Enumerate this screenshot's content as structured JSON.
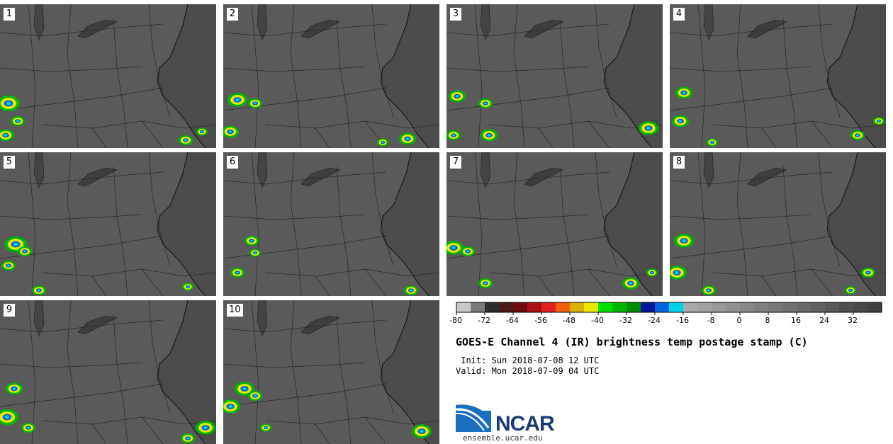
{
  "stamps": [
    {
      "label": "1"
    },
    {
      "label": "2"
    },
    {
      "label": "3"
    },
    {
      "label": "4"
    },
    {
      "label": "5"
    },
    {
      "label": "6"
    },
    {
      "label": "7"
    },
    {
      "label": "8"
    },
    {
      "label": "9"
    },
    {
      "label": "10"
    }
  ],
  "colorbar": {
    "min": -80,
    "max": 40,
    "step": 4,
    "tick_labels": [
      "-80",
      "-72",
      "-64",
      "-56",
      "-48",
      "-40",
      "-32",
      "-24",
      "-16",
      "-8",
      "0",
      "8",
      "16",
      "24",
      "32"
    ],
    "colors": [
      "#c8c8c8",
      "#7a7a7a",
      "#2d2d2d",
      "#4d1a1a",
      "#6e0e0e",
      "#a81212",
      "#e02020",
      "#f06010",
      "#d8b000",
      "#e8e800",
      "#00e000",
      "#00b400",
      "#008c00",
      "#0014a0",
      "#0064e0",
      "#00d0e8",
      "#a8a8a8",
      "#a0a0a0",
      "#989898",
      "#909090",
      "#888888",
      "#808080",
      "#787878",
      "#707070",
      "#686868",
      "#606060",
      "#585858",
      "#505050",
      "#484848",
      "#404040"
    ]
  },
  "title": "GOES-E Channel 4 (IR) brightness temp postage stamp (C)",
  "init": " Init: Sun 2018-07-08 12 UTC",
  "valid": "Valid: Mon 2018-07-09 04 UTC",
  "logo": {
    "text": "NCAR",
    "url": "ensemble.ucar.edu"
  }
}
